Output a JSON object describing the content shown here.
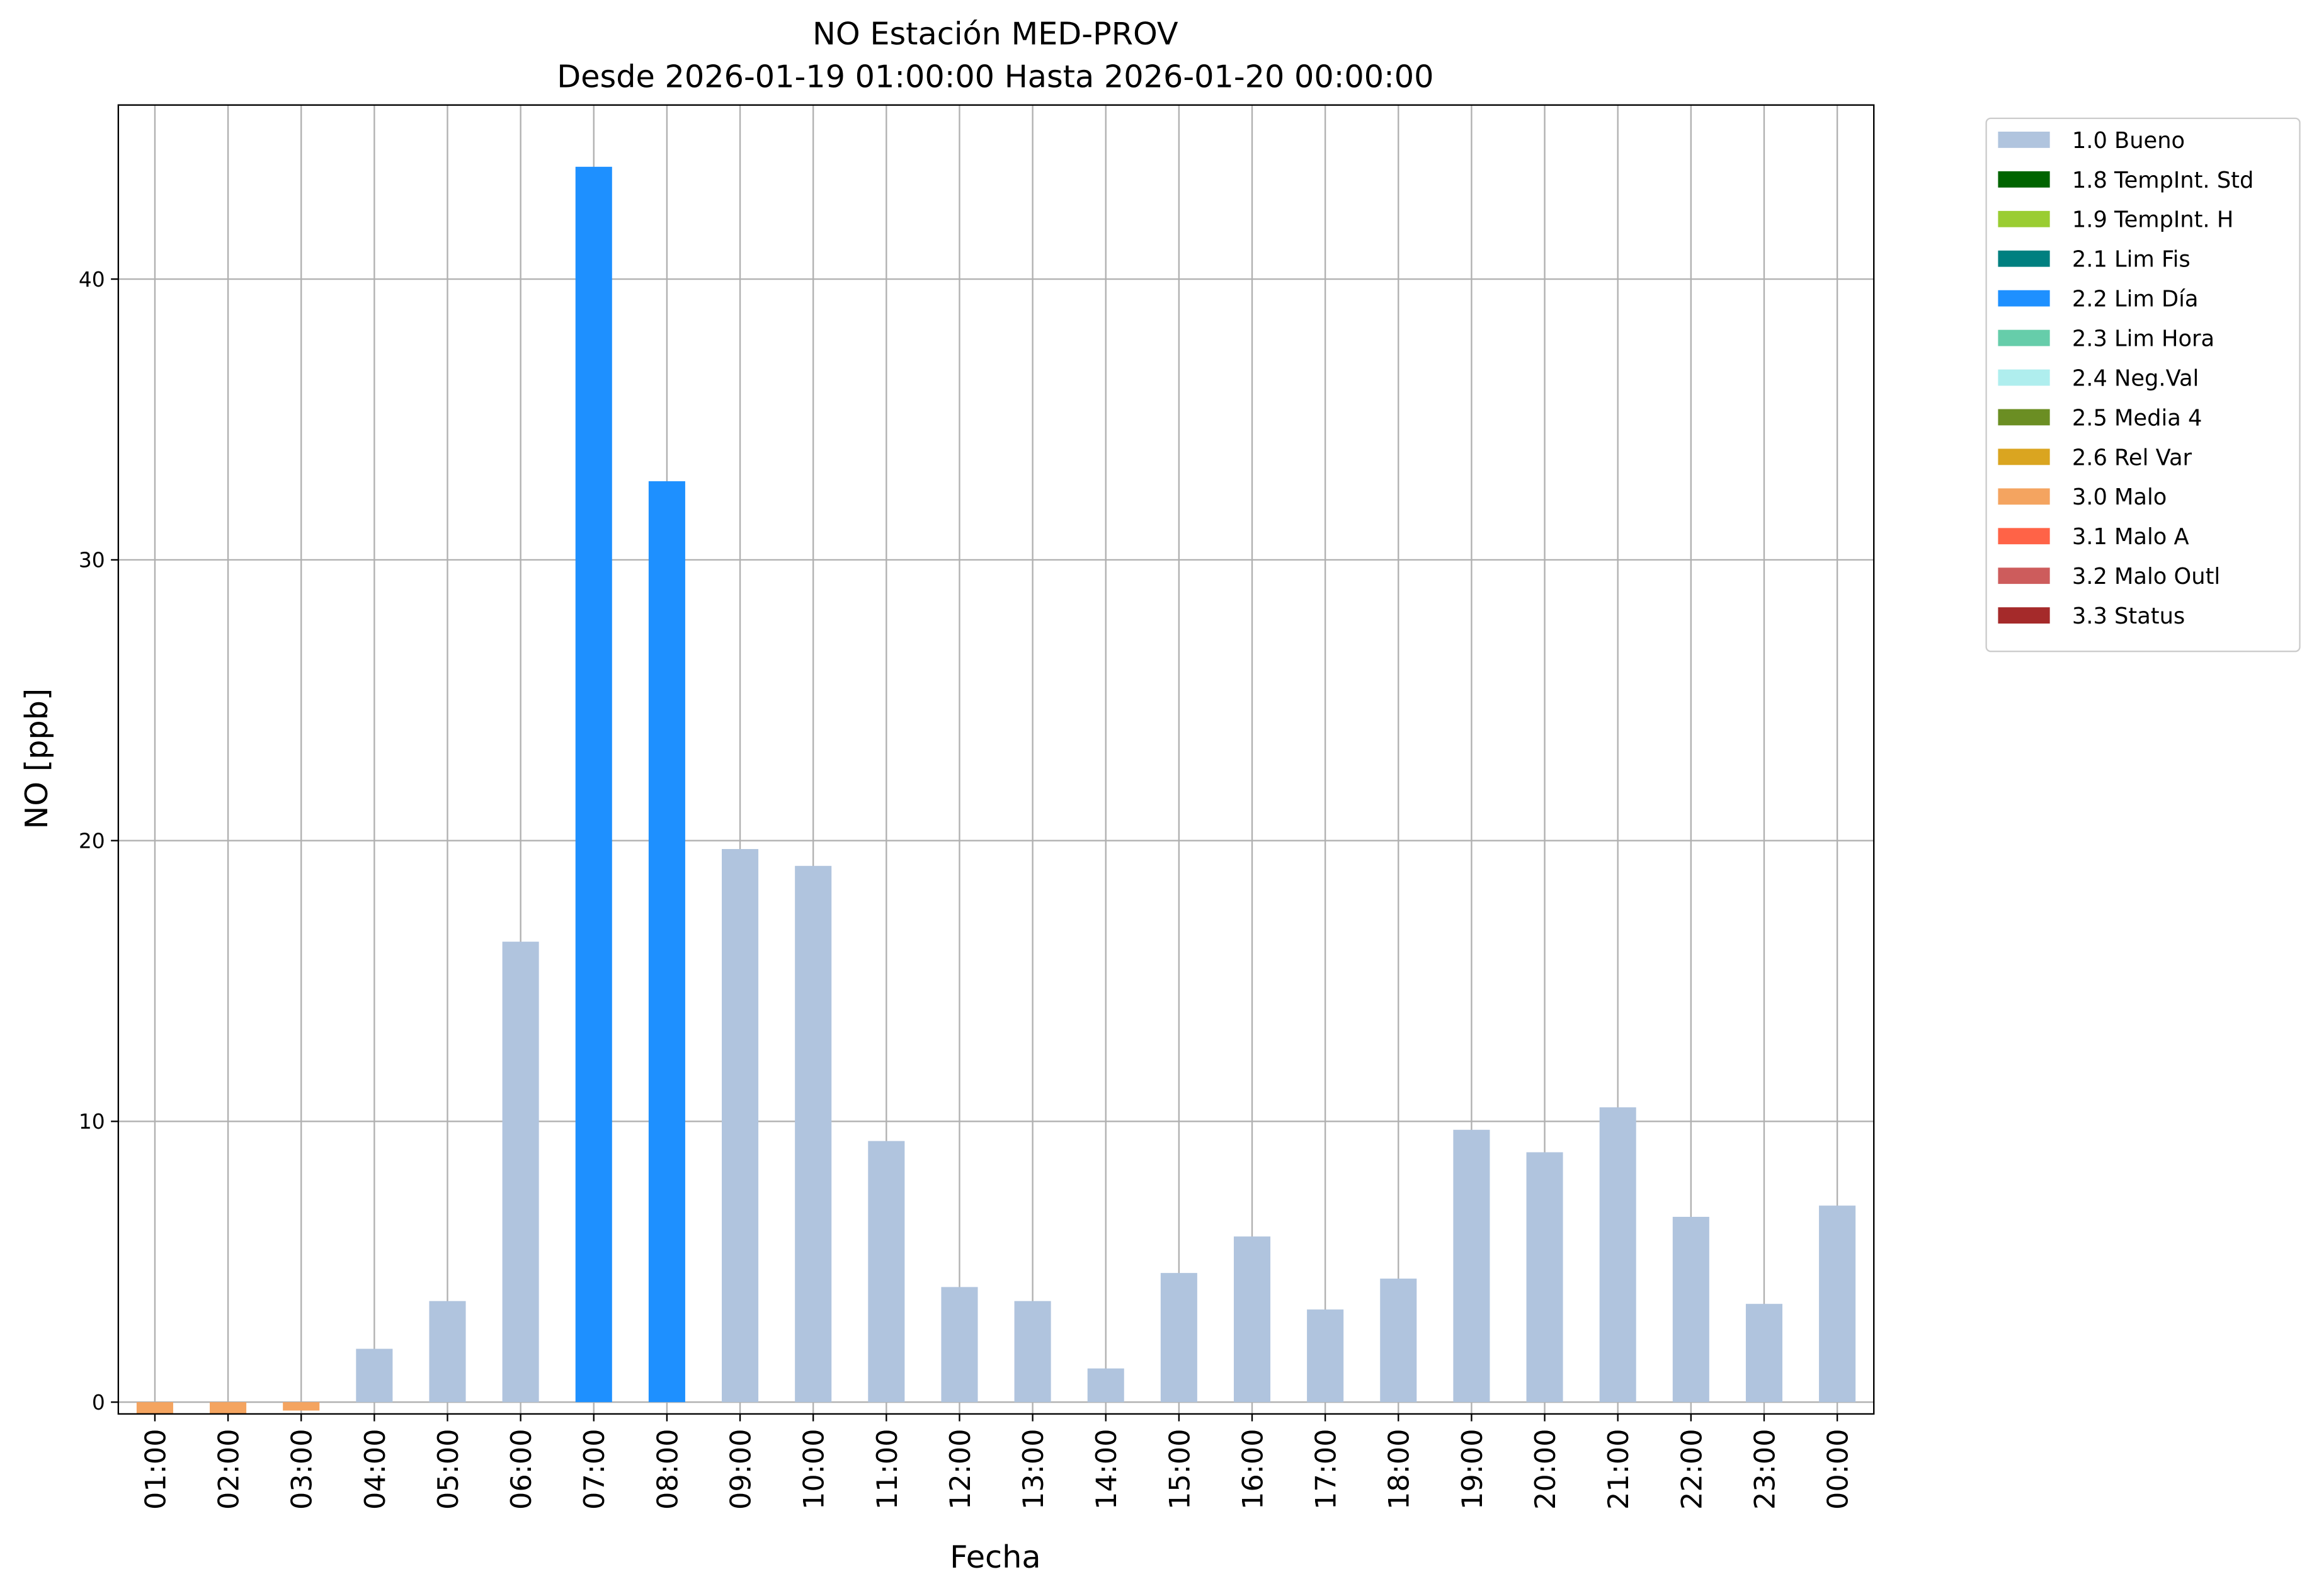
{
  "chart_data": {
    "type": "bar",
    "title": "NO Estación MED-PROV",
    "subtitle": "Desde 2026-01-19 01:00:00 Hasta 2026-01-20 00:00:00",
    "xlabel": "Fecha",
    "ylabel": "NO [ppb]",
    "categories": [
      "01:00",
      "02:00",
      "03:00",
      "04:00",
      "05:00",
      "06:00",
      "07:00",
      "08:00",
      "09:00",
      "10:00",
      "11:00",
      "12:00",
      "13:00",
      "14:00",
      "15:00",
      "16:00",
      "17:00",
      "18:00",
      "19:00",
      "20:00",
      "21:00",
      "22:00",
      "23:00",
      "00:00"
    ],
    "series": [
      {
        "name": "1.0 Bueno",
        "color": "#b0c4de",
        "values": [
          null,
          null,
          null,
          1.9,
          3.6,
          16.4,
          null,
          null,
          19.7,
          19.1,
          9.3,
          4.1,
          3.6,
          1.2,
          4.6,
          5.9,
          3.3,
          4.4,
          9.7,
          8.9,
          10.5,
          6.6,
          3.5,
          7.0
        ]
      },
      {
        "name": "1.8 TempInt. Std",
        "color": "#006400",
        "values": [
          null,
          null,
          null,
          null,
          null,
          null,
          null,
          null,
          null,
          null,
          null,
          null,
          null,
          null,
          null,
          null,
          null,
          null,
          null,
          null,
          null,
          null,
          null,
          null
        ]
      },
      {
        "name": "1.9 TempInt. H",
        "color": "#9acd32",
        "values": [
          null,
          null,
          null,
          null,
          null,
          null,
          null,
          null,
          null,
          null,
          null,
          null,
          null,
          null,
          null,
          null,
          null,
          null,
          null,
          null,
          null,
          null,
          null,
          null
        ]
      },
      {
        "name": "2.1 Lim Fis",
        "color": "#008080",
        "values": [
          null,
          null,
          null,
          null,
          null,
          null,
          null,
          null,
          null,
          null,
          null,
          null,
          null,
          null,
          null,
          null,
          null,
          null,
          null,
          null,
          null,
          null,
          null,
          null
        ]
      },
      {
        "name": "2.2 Lim Día",
        "color": "#1e90ff",
        "values": [
          null,
          null,
          null,
          null,
          null,
          null,
          44.0,
          32.8,
          null,
          null,
          null,
          null,
          null,
          null,
          null,
          null,
          null,
          null,
          null,
          null,
          null,
          null,
          null,
          null
        ]
      },
      {
        "name": "2.3 Lim Hora",
        "color": "#66cdaa",
        "values": [
          null,
          null,
          null,
          null,
          null,
          null,
          null,
          null,
          null,
          null,
          null,
          null,
          null,
          null,
          null,
          null,
          null,
          null,
          null,
          null,
          null,
          null,
          null,
          null
        ]
      },
      {
        "name": "2.4 Neg.Val",
        "color": "#afeeee",
        "values": [
          null,
          null,
          null,
          null,
          null,
          null,
          null,
          null,
          null,
          null,
          null,
          null,
          null,
          null,
          null,
          null,
          null,
          null,
          null,
          null,
          null,
          null,
          null,
          null
        ]
      },
      {
        "name": "2.5 Media 4",
        "color": "#6b8e23",
        "values": [
          null,
          null,
          null,
          null,
          null,
          null,
          null,
          null,
          null,
          null,
          null,
          null,
          null,
          null,
          null,
          null,
          null,
          null,
          null,
          null,
          null,
          null,
          null,
          null
        ]
      },
      {
        "name": "2.6 Rel Var",
        "color": "#daa520",
        "values": [
          null,
          null,
          null,
          null,
          null,
          null,
          null,
          null,
          null,
          null,
          null,
          null,
          null,
          null,
          null,
          null,
          null,
          null,
          null,
          null,
          null,
          null,
          null,
          null
        ]
      },
      {
        "name": "3.0 Malo",
        "color": "#f4a460",
        "values": [
          -0.4,
          -0.4,
          -0.3,
          null,
          null,
          null,
          null,
          null,
          null,
          null,
          null,
          null,
          null,
          null,
          null,
          null,
          null,
          null,
          null,
          null,
          null,
          null,
          null,
          null
        ]
      },
      {
        "name": "3.1 Malo A",
        "color": "#ff6347",
        "values": [
          null,
          null,
          null,
          null,
          null,
          null,
          null,
          null,
          null,
          null,
          null,
          null,
          null,
          null,
          null,
          null,
          null,
          null,
          null,
          null,
          null,
          null,
          null,
          null
        ]
      },
      {
        "name": "3.2 Malo Outl",
        "color": "#cd5c5c",
        "values": [
          null,
          null,
          null,
          null,
          null,
          null,
          null,
          null,
          null,
          null,
          null,
          null,
          null,
          null,
          null,
          null,
          null,
          null,
          null,
          null,
          null,
          null,
          null,
          null
        ]
      },
      {
        "name": "3.3 Status",
        "color": "#a52a2a",
        "values": [
          null,
          null,
          null,
          null,
          null,
          null,
          null,
          null,
          null,
          null,
          null,
          null,
          null,
          null,
          null,
          null,
          null,
          null,
          null,
          null,
          null,
          null,
          null,
          null
        ]
      }
    ],
    "ylim": [
      -0.42,
      46.2
    ],
    "yticks": [
      0,
      10,
      20,
      30,
      40
    ],
    "grid": true,
    "legend": "outside-right"
  }
}
